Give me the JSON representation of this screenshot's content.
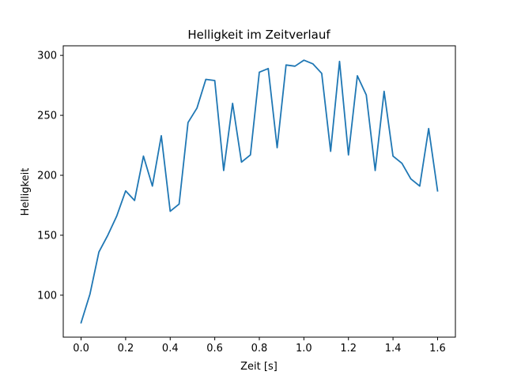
{
  "chart_data": {
    "type": "line",
    "title": "Helligkeit im Zeitverlauf",
    "xlabel": "Zeit [s]",
    "ylabel": "Helligkeit",
    "xlim": [
      -0.08,
      1.68
    ],
    "ylim": [
      65,
      308
    ],
    "grid": false,
    "legend": "none",
    "xticks": [
      0.0,
      0.2,
      0.4,
      0.6,
      0.8,
      1.0,
      1.2,
      1.4,
      1.6
    ],
    "xtick_labels": [
      "0.0",
      "0.2",
      "0.4",
      "0.6",
      "0.8",
      "1.0",
      "1.2",
      "1.4",
      "1.6"
    ],
    "yticks": [
      100,
      150,
      200,
      250,
      300
    ],
    "ytick_labels": [
      "100",
      "150",
      "200",
      "250",
      "300"
    ],
    "series": [
      {
        "name": "Helligkeit",
        "color": "#1f77b4",
        "x": [
          0.0,
          0.04,
          0.08,
          0.12,
          0.16,
          0.2,
          0.24,
          0.28,
          0.32,
          0.36,
          0.4,
          0.44,
          0.48,
          0.52,
          0.56,
          0.6,
          0.64,
          0.68,
          0.72,
          0.76,
          0.8,
          0.84,
          0.88,
          0.92,
          0.96,
          1.0,
          1.04,
          1.08,
          1.12,
          1.16,
          1.2,
          1.24,
          1.28,
          1.32,
          1.36,
          1.4,
          1.44,
          1.48,
          1.52,
          1.56,
          1.6
        ],
        "y": [
          77,
          101,
          136,
          150,
          166,
          187,
          179,
          216,
          191,
          233,
          170,
          176,
          244,
          256,
          280,
          279,
          204,
          260,
          211,
          217,
          286,
          289,
          223,
          292,
          291,
          296,
          293,
          285,
          220,
          295,
          217,
          283,
          267,
          204,
          270,
          216,
          210,
          197,
          191,
          239,
          187
        ]
      }
    ]
  }
}
